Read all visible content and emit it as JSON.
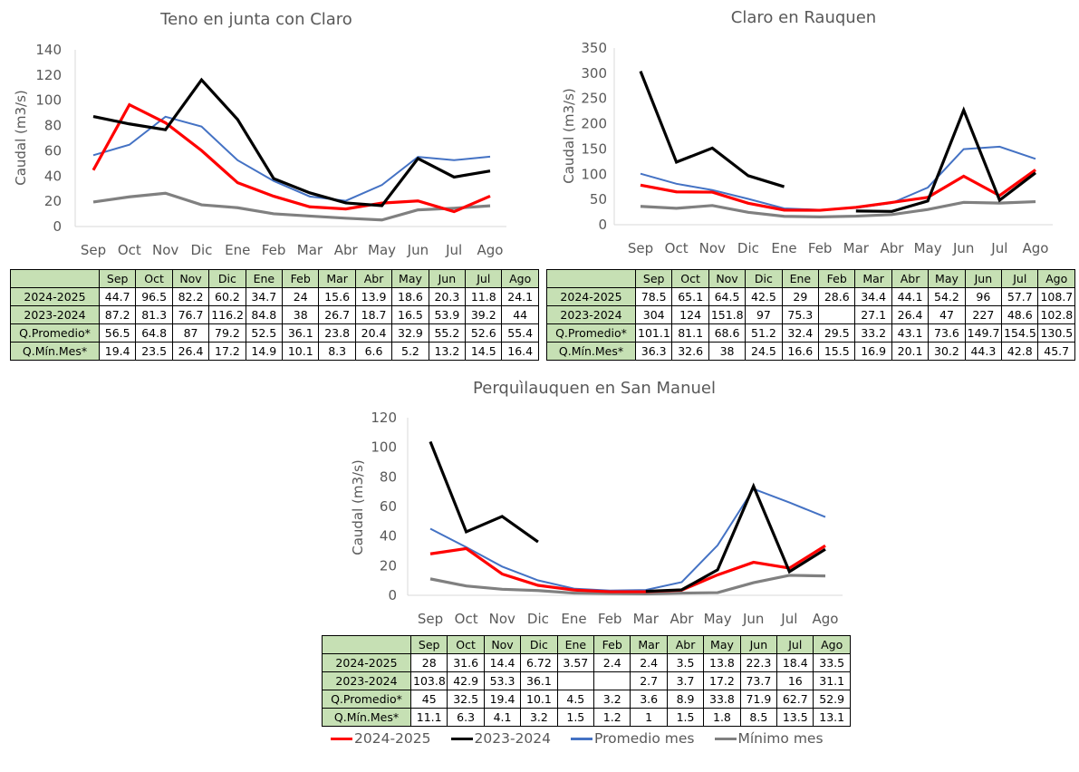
{
  "months": [
    "Sep",
    "Oct",
    "Nov",
    "Dic",
    "Ene",
    "Feb",
    "Mar",
    "Abr",
    "May",
    "Jun",
    "Jul",
    "Ago"
  ],
  "series_style": {
    "2024-2025": {
      "color": "#ff0000"
    },
    "2023-2024": {
      "color": "#000000"
    },
    "Promedio mes": {
      "color": "#4472c4"
    },
    "Mínimo mes": {
      "color": "#808080"
    }
  },
  "legend": [
    {
      "label": "2024-2025",
      "color": "#ff0000"
    },
    {
      "label": "2023-2024",
      "color": "#000000"
    },
    {
      "label": "Promedio mes",
      "color": "#4472c4"
    },
    {
      "label": "Mínimo mes",
      "color": "#808080"
    }
  ],
  "table_row_labels": [
    "2024-2025",
    "2023-2024",
    "Q.Promedio*",
    "Q.Mín.Mes*"
  ],
  "chart_data": [
    {
      "type": "line",
      "title": "Teno en junta con Claro",
      "xlabel": "",
      "ylabel": "Caudal (m3/s)",
      "ylim": [
        0,
        140
      ],
      "yticks": [
        0,
        20,
        40,
        60,
        80,
        100,
        120,
        140
      ],
      "grid": false,
      "categories": [
        "Sep",
        "Oct",
        "Nov",
        "Dic",
        "Ene",
        "Feb",
        "Mar",
        "Abr",
        "May",
        "Jun",
        "Jul",
        "Ago"
      ],
      "series": [
        {
          "name": "2024-2025",
          "values": [
            44.7,
            96.5,
            82.2,
            60.2,
            34.7,
            24,
            15.6,
            13.9,
            18.6,
            20.3,
            11.8,
            24.1
          ]
        },
        {
          "name": "2023-2024",
          "values": [
            87.2,
            81.3,
            76.7,
            116.2,
            84.8,
            38,
            26.7,
            18.7,
            16.5,
            53.9,
            39.2,
            44
          ]
        },
        {
          "name": "Promedio mes",
          "values": [
            56.5,
            64.8,
            87,
            79.2,
            52.5,
            36.1,
            23.8,
            20.4,
            32.9,
            55.2,
            52.6,
            55.4
          ]
        },
        {
          "name": "Mínimo mes",
          "values": [
            19.4,
            23.5,
            26.4,
            17.2,
            14.9,
            10.1,
            8.3,
            6.6,
            5.2,
            13.2,
            14.5,
            16.4
          ]
        }
      ],
      "table": {
        "rows": [
          {
            "label": "2024-2025",
            "cells": [
              "44.7",
              "96.5",
              "82.2",
              "60.2",
              "34.7",
              "24",
              "15.6",
              "13.9",
              "18.6",
              "20.3",
              "11.8",
              "24.1"
            ]
          },
          {
            "label": "2023-2024",
            "cells": [
              "87.2",
              "81.3",
              "76.7",
              "116.2",
              "84.8",
              "38",
              "26.7",
              "18.7",
              "16.5",
              "53.9",
              "39.2",
              "44"
            ]
          },
          {
            "label": "Q.Promedio*",
            "cells": [
              "56.5",
              "64.8",
              "87",
              "79.2",
              "52.5",
              "36.1",
              "23.8",
              "20.4",
              "32.9",
              "55.2",
              "52.6",
              "55.4"
            ]
          },
          {
            "label": "Q.Mín.Mes*",
            "cells": [
              "19.4",
              "23.5",
              "26.4",
              "17.2",
              "14.9",
              "10.1",
              "8.3",
              "6.6",
              "5.2",
              "13.2",
              "14.5",
              "16.4"
            ]
          }
        ]
      }
    },
    {
      "type": "line",
      "title": "Claro en Rauquen",
      "xlabel": "",
      "ylabel": "Caudal (m3/s)",
      "ylim": [
        0,
        350
      ],
      "yticks": [
        0,
        50,
        100,
        150,
        200,
        250,
        300,
        350
      ],
      "grid": false,
      "categories": [
        "Sep",
        "Oct",
        "Nov",
        "Dic",
        "Ene",
        "Feb",
        "Mar",
        "Abr",
        "May",
        "Jun",
        "Jul",
        "Ago"
      ],
      "series": [
        {
          "name": "2024-2025",
          "values": [
            78.5,
            65.1,
            64.5,
            42.5,
            29,
            28.6,
            34.4,
            44.1,
            54.2,
            96,
            57.7,
            108.7
          ]
        },
        {
          "name": "2023-2024",
          "values": [
            304,
            124,
            151.8,
            97,
            75.3,
            null,
            27.1,
            26.4,
            47,
            227,
            48.6,
            102.8
          ]
        },
        {
          "name": "Promedio mes",
          "values": [
            101.1,
            81.1,
            68.6,
            51.2,
            32.4,
            29.5,
            33.2,
            43.1,
            73.6,
            149.7,
            154.5,
            130.5
          ]
        },
        {
          "name": "Mínimo mes",
          "values": [
            36.3,
            32.6,
            38,
            24.5,
            16.6,
            15.5,
            16.9,
            20.1,
            30.2,
            44.3,
            42.8,
            45.7
          ]
        }
      ],
      "table": {
        "rows": [
          {
            "label": "2024-2025",
            "cells": [
              "78.5",
              "65.1",
              "64.5",
              "42.5",
              "29",
              "28.6",
              "34.4",
              "44.1",
              "54.2",
              "96",
              "57.7",
              "108.7"
            ]
          },
          {
            "label": "2023-2024",
            "cells": [
              "304",
              "124",
              "151.8",
              "97",
              "75.3",
              "",
              "27.1",
              "26.4",
              "47",
              "227",
              "48.6",
              "102.8"
            ]
          },
          {
            "label": "Q.Promedio*",
            "cells": [
              "101.1",
              "81.1",
              "68.6",
              "51.2",
              "32.4",
              "29.5",
              "33.2",
              "43.1",
              "73.6",
              "149.7",
              "154.5",
              "130.5"
            ]
          },
          {
            "label": "Q.Mín.Mes*",
            "cells": [
              "36.3",
              "32.6",
              "38",
              "24.5",
              "16.6",
              "15.5",
              "16.9",
              "20.1",
              "30.2",
              "44.3",
              "42.8",
              "45.7"
            ]
          }
        ]
      }
    },
    {
      "type": "line",
      "title": "Perquìlauquen en San Manuel",
      "xlabel": "",
      "ylabel": "Caudal (m3/s)",
      "ylim": [
        0,
        120
      ],
      "yticks": [
        0,
        20,
        40,
        60,
        80,
        100,
        120
      ],
      "grid": false,
      "categories": [
        "Sep",
        "Oct",
        "Nov",
        "Dic",
        "Ene",
        "Feb",
        "Mar",
        "Abr",
        "May",
        "Jun",
        "Jul",
        "Ago"
      ],
      "series": [
        {
          "name": "2024-2025",
          "values": [
            28,
            31.6,
            14.4,
            6.72,
            3.57,
            2.4,
            2.4,
            3.5,
            13.8,
            22.3,
            18.4,
            33.5
          ]
        },
        {
          "name": "2023-2024",
          "values": [
            103.8,
            42.9,
            53.3,
            36.1,
            null,
            null,
            2.7,
            3.7,
            17.2,
            73.7,
            16,
            31.1
          ]
        },
        {
          "name": "Promedio mes",
          "values": [
            45,
            32.5,
            19.4,
            10.1,
            4.5,
            3.2,
            3.6,
            8.9,
            33.8,
            71.9,
            62.7,
            52.9
          ]
        },
        {
          "name": "Mínimo mes",
          "values": [
            11.1,
            6.3,
            4.1,
            3.2,
            1.5,
            1.2,
            1,
            1.5,
            1.8,
            8.5,
            13.5,
            13.1
          ]
        }
      ],
      "table": {
        "rows": [
          {
            "label": "2024-2025",
            "cells": [
              "28",
              "31.6",
              "14.4",
              "6.72",
              "3.57",
              "2.4",
              "2.4",
              "3.5",
              "13.8",
              "22.3",
              "18.4",
              "33.5"
            ]
          },
          {
            "label": "2023-2024",
            "cells": [
              "103.8",
              "42.9",
              "53.3",
              "36.1",
              "",
              "",
              "2.7",
              "3.7",
              "17.2",
              "73.7",
              "16",
              "31.1"
            ]
          },
          {
            "label": "Q.Promedio*",
            "cells": [
              "45",
              "32.5",
              "19.4",
              "10.1",
              "4.5",
              "3.2",
              "3.6",
              "8.9",
              "33.8",
              "71.9",
              "62.7",
              "52.9"
            ]
          },
          {
            "label": "Q.Mín.Mes*",
            "cells": [
              "11.1",
              "6.3",
              "4.1",
              "3.2",
              "1.5",
              "1.2",
              "1",
              "1.5",
              "1.8",
              "8.5",
              "13.5",
              "13.1"
            ]
          }
        ]
      }
    }
  ]
}
